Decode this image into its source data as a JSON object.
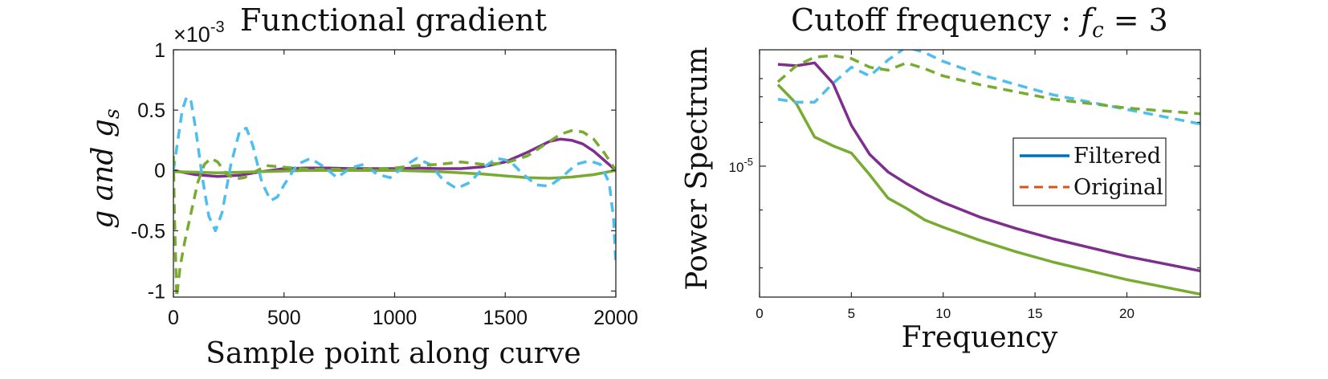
{
  "chart_data": [
    {
      "type": "line",
      "title": "Functional gradient",
      "xlabel": "Sample point along curve",
      "ylabel": "g and g",
      "ylabel_subscript": "s",
      "exponent_label": "×10",
      "exponent_power": "-3",
      "xlim": [
        0,
        2000
      ],
      "ylim": [
        -1.05,
        1.0
      ],
      "xticks": [
        0,
        500,
        1000,
        1500,
        2000
      ],
      "xtick_labels": [
        "0",
        "500",
        "1000",
        "1500",
        "2000"
      ],
      "yticks": [
        -1,
        -0.5,
        0,
        0.5,
        1
      ],
      "ytick_labels": [
        "-1",
        "-0.5",
        "0",
        "0.5",
        "1"
      ],
      "grid": false,
      "series": [
        {
          "color": "#7E2F8E",
          "style": "solid",
          "x": [
            0,
            100,
            200,
            300,
            400,
            500,
            600,
            700,
            800,
            900,
            1000,
            1100,
            1200,
            1300,
            1400,
            1500,
            1600,
            1700,
            1750,
            1800,
            1850,
            1900,
            1950,
            2000
          ],
          "y": [
            0,
            -0.035,
            -0.05,
            -0.04,
            -0.01,
            0.015,
            0.02,
            0.02,
            0.015,
            0.015,
            0.015,
            0.02,
            0.015,
            0.015,
            0.03,
            0.07,
            0.15,
            0.24,
            0.26,
            0.25,
            0.22,
            0.16,
            0.08,
            0
          ]
        },
        {
          "color": "#77AC30",
          "style": "solid",
          "x": [
            0,
            200,
            400,
            600,
            800,
            1000,
            1200,
            1400,
            1600,
            1700,
            1800,
            1900,
            2000
          ],
          "y": [
            -0.01,
            -0.02,
            -0.01,
            0.0,
            0.0,
            0.0,
            -0.01,
            -0.03,
            -0.06,
            -0.065,
            -0.055,
            -0.035,
            0
          ]
        },
        {
          "color": "#4DBEEE",
          "style": "dashed",
          "x": [
            0,
            20,
            40,
            60,
            80,
            100,
            130,
            160,
            190,
            220,
            260,
            300,
            330,
            360,
            400,
            440,
            470,
            500,
            560,
            620,
            680,
            740,
            800,
            860,
            920,
            980,
            1040,
            1100,
            1160,
            1220,
            1280,
            1340,
            1400,
            1460,
            1520,
            1580,
            1640,
            1700,
            1760,
            1820,
            1880,
            1930,
            1970,
            1990,
            2000
          ],
          "y": [
            0.0,
            0.25,
            0.5,
            0.61,
            0.57,
            0.35,
            -0.05,
            -0.38,
            -0.5,
            -0.35,
            0.05,
            0.33,
            0.35,
            0.2,
            -0.1,
            -0.25,
            -0.22,
            -0.12,
            0.05,
            0.1,
            0.03,
            -0.06,
            0.02,
            0.05,
            -0.03,
            -0.06,
            0.03,
            0.1,
            0.05,
            -0.08,
            -0.15,
            -0.1,
            0.02,
            0.1,
            0.08,
            -0.03,
            -0.12,
            -0.13,
            -0.05,
            0.05,
            0.08,
            0.05,
            -0.1,
            -0.4,
            -0.78
          ]
        },
        {
          "color": "#77AC30",
          "style": "dashed",
          "x": [
            0,
            5,
            15,
            30,
            50,
            80,
            110,
            140,
            170,
            200,
            240,
            280,
            320,
            360,
            420,
            480,
            540,
            600,
            700,
            800,
            900,
            1000,
            1100,
            1200,
            1300,
            1400,
            1500,
            1600,
            1650,
            1700,
            1750,
            1800,
            1850,
            1900,
            1950,
            2000
          ],
          "y": [
            0.12,
            -0.4,
            -1.05,
            -0.8,
            -0.6,
            -0.35,
            -0.1,
            0.05,
            0.1,
            0.07,
            -0.03,
            -0.07,
            -0.06,
            -0.02,
            0.04,
            0.03,
            0.02,
            0.01,
            0.01,
            0.01,
            0.01,
            0.02,
            0.04,
            0.05,
            0.07,
            0.05,
            0.06,
            0.12,
            0.18,
            0.24,
            0.3,
            0.33,
            0.32,
            0.26,
            0.14,
            0.0
          ]
        }
      ]
    },
    {
      "type": "line",
      "title": "Cutoff frequency :",
      "title_math": "f",
      "title_math_sub": "c",
      "title_math_rest": " = 3",
      "xlabel": "Frequency",
      "ylabel": "Power Spectrum",
      "xlim": [
        0,
        24
      ],
      "ylim_log10": [
        -5.9,
        -4.2
      ],
      "yscale": "log",
      "xticks": [
        0,
        5,
        10,
        15,
        20
      ],
      "xtick_labels": [
        "0",
        "5",
        "10",
        "15",
        "20"
      ],
      "ytick_base": "10",
      "ytick_power": "-5",
      "ytick_value_log10": -5,
      "minor_yticks_log10": [
        -4.3979,
        -4.5229,
        -4.699,
        -5.301,
        -5.699
      ],
      "grid": false,
      "legend_position": "inside-right",
      "legend": [
        {
          "label": "Filtered",
          "color": "#0072BD",
          "style": "solid"
        },
        {
          "label": "Original",
          "color": "#D95319",
          "style": "dashed"
        }
      ],
      "series": [
        {
          "color": "#7E2F8E",
          "style": "solid",
          "x": [
            1,
            2,
            3,
            4,
            5,
            6,
            7,
            8,
            9,
            10,
            12,
            14,
            16,
            18,
            20,
            22,
            24
          ],
          "y_log10": [
            -4.3,
            -4.31,
            -4.29,
            -4.43,
            -4.72,
            -4.92,
            -5.04,
            -5.12,
            -5.19,
            -5.25,
            -5.35,
            -5.43,
            -5.5,
            -5.56,
            -5.62,
            -5.67,
            -5.72
          ]
        },
        {
          "color": "#77AC30",
          "style": "solid",
          "x": [
            1,
            2,
            3,
            4,
            5,
            6,
            7,
            8,
            9,
            10,
            12,
            14,
            16,
            18,
            20,
            22,
            24
          ],
          "y_log10": [
            -4.44,
            -4.57,
            -4.8,
            -4.86,
            -4.91,
            -5.06,
            -5.22,
            -5.29,
            -5.37,
            -5.42,
            -5.51,
            -5.59,
            -5.66,
            -5.72,
            -5.78,
            -5.83,
            -5.88
          ]
        },
        {
          "color": "#4DBEEE",
          "style": "dashed",
          "x": [
            1,
            2,
            3,
            4,
            5,
            6,
            7,
            8,
            9,
            10,
            12,
            14,
            16,
            18,
            20,
            22,
            24
          ],
          "y_log10": [
            -4.54,
            -4.56,
            -4.56,
            -4.43,
            -4.32,
            -4.38,
            -4.27,
            -4.18,
            -4.22,
            -4.28,
            -4.37,
            -4.44,
            -4.51,
            -4.56,
            -4.61,
            -4.66,
            -4.71
          ]
        },
        {
          "color": "#77AC30",
          "style": "dashed",
          "x": [
            1,
            2,
            3,
            4,
            5,
            6,
            7,
            8,
            9,
            10,
            12,
            14,
            16,
            18,
            20,
            22,
            24
          ],
          "y_log10": [
            -4.42,
            -4.31,
            -4.25,
            -4.24,
            -4.26,
            -4.32,
            -4.34,
            -4.29,
            -4.33,
            -4.38,
            -4.44,
            -4.49,
            -4.54,
            -4.57,
            -4.6,
            -4.62,
            -4.64
          ]
        }
      ]
    }
  ]
}
